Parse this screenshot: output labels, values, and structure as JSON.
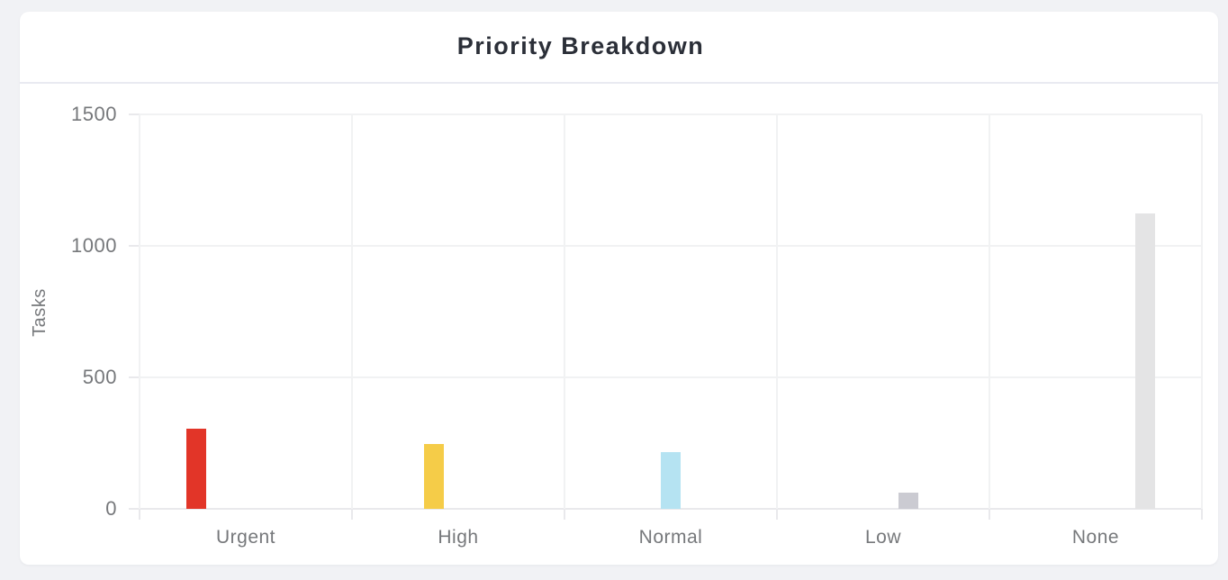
{
  "widget": {
    "title": "Priority Breakdown"
  },
  "chart_data": {
    "type": "bar",
    "title": "Priority Breakdown",
    "categories": [
      "Urgent",
      "High",
      "Normal",
      "Low",
      "None"
    ],
    "series": [
      {
        "name": "Urgent",
        "value": 305,
        "color": "#e23528"
      },
      {
        "name": "High",
        "value": 245,
        "color": "#f5cc48"
      },
      {
        "name": "Normal",
        "value": 217,
        "color": "#b5e3f2"
      },
      {
        "name": "Low",
        "value": 63,
        "color": "#cbcbd2"
      },
      {
        "name": "None",
        "value": 1125,
        "color": "#e4e4e5"
      }
    ],
    "xlabel": "",
    "ylabel": "Tasks",
    "ylim": [
      0,
      1500
    ],
    "yticks": [
      0,
      500,
      1000,
      1500
    ],
    "grid": true,
    "legend": "none"
  }
}
